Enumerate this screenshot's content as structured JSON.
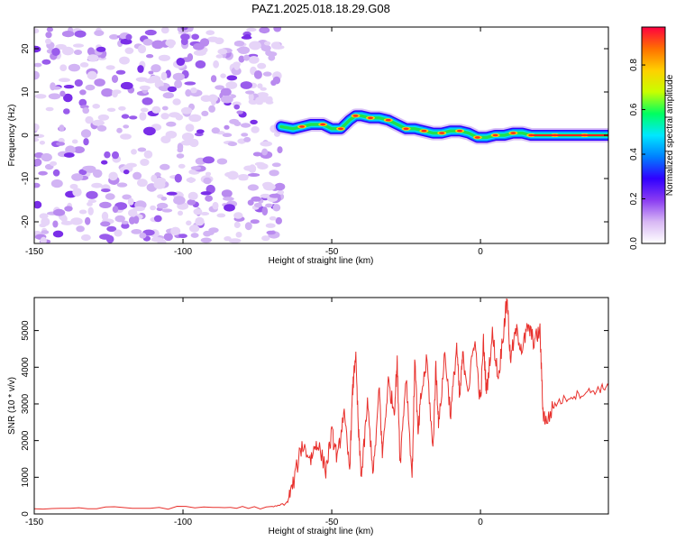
{
  "title": "PAZ1.2025.018.18.29.G08",
  "chart_data": [
    {
      "type": "heatmap",
      "xlabel": "Height of straight line (km)",
      "ylabel": "Frequency (Hz)",
      "xlim": [
        -150,
        43
      ],
      "ylim": [
        -25,
        25
      ],
      "xticks": [
        -150,
        -100,
        -50,
        0
      ],
      "yticks": [
        -20,
        -10,
        0,
        10,
        20
      ],
      "colorbar": {
        "label": "Normalized spectral amplitude",
        "range": [
          0,
          0.97
        ],
        "ticks": [
          0.0,
          0.2,
          0.4,
          0.6,
          0.8
        ],
        "colors": [
          "#ffffff",
          "#d8b8f4",
          "#8a3cf2",
          "#3000ff",
          "#0080ff",
          "#00e8ff",
          "#00ff60",
          "#c8ff00",
          "#ffd000",
          "#ff7000",
          "#ff0040"
        ]
      },
      "noise_region": {
        "x_range": [
          -150,
          -67
        ],
        "y_range": [
          -25,
          25
        ]
      },
      "signal_trace": {
        "x": [
          -67,
          -63,
          -60,
          -57,
          -53,
          -50,
          -47,
          -44,
          -42,
          -40,
          -37,
          -34,
          -31,
          -28,
          -25,
          -22,
          -19,
          -16,
          -13,
          -10,
          -7,
          -4,
          -1,
          2,
          5,
          8,
          11,
          14,
          17,
          20,
          25,
          30,
          35,
          43
        ],
        "freq": [
          2,
          1.5,
          2,
          2.5,
          2.5,
          1.5,
          1.5,
          3.5,
          4.5,
          4.5,
          4,
          4,
          3.5,
          2.5,
          1.5,
          1.5,
          1,
          0.5,
          0.5,
          1,
          1,
          0.5,
          -0.5,
          -0.5,
          0,
          0,
          0.5,
          0.5,
          0,
          0,
          0,
          0,
          0,
          0
        ]
      }
    },
    {
      "type": "line",
      "xlabel": "Height of straight line (km)",
      "ylabel": "SNR (10 * v/v)",
      "xlim": [
        -150,
        43
      ],
      "ylim": [
        0,
        5900
      ],
      "xticks": [
        -150,
        -100,
        -50,
        0
      ],
      "yticks": [
        0,
        1000,
        2000,
        3000,
        4000,
        5000
      ],
      "color": "#e8302c",
      "x": [
        -150,
        -120,
        -90,
        -70,
        -65,
        -63,
        -60,
        -57,
        -55,
        -52,
        -50,
        -48,
        -46,
        -44,
        -43,
        -42,
        -41,
        -40,
        -38,
        -36,
        -34,
        -33,
        -31,
        -29,
        -28,
        -27,
        -25,
        -23,
        -22,
        -21,
        -20,
        -18,
        -16,
        -15,
        -14,
        -12,
        -10,
        -8,
        -7,
        -6,
        -4,
        -2,
        0,
        1,
        2,
        4,
        6,
        8,
        9,
        10,
        12,
        14,
        16,
        18,
        20,
        21,
        22,
        25,
        30,
        35,
        40,
        43
      ],
      "y": [
        150,
        160,
        180,
        170,
        300,
        800,
        1900,
        1500,
        2000,
        1200,
        2200,
        1500,
        2800,
        1200,
        3300,
        4400,
        2200,
        1000,
        3000,
        1100,
        3400,
        1600,
        3600,
        2800,
        4100,
        1400,
        3800,
        1000,
        4300,
        2100,
        3200,
        4200,
        1700,
        4000,
        2400,
        4400,
        2700,
        4600,
        3100,
        4300,
        3400,
        4800,
        3000,
        4700,
        3300,
        4900,
        3700,
        5200,
        5900,
        4200,
        5000,
        4500,
        5100,
        4700,
        5000,
        2800,
        2500,
        3000,
        3200,
        3300,
        3400,
        3500
      ]
    }
  ]
}
